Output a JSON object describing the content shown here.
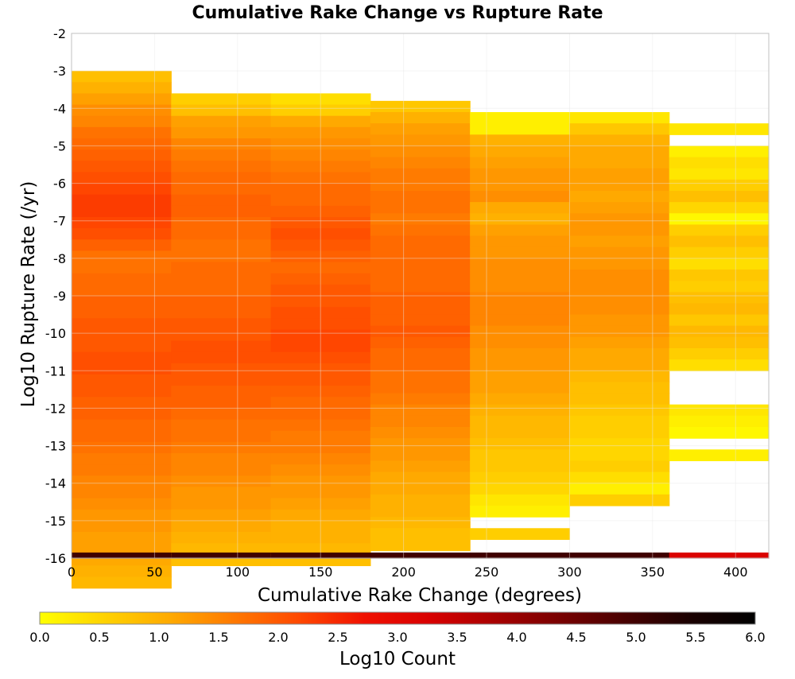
{
  "chart_data": {
    "type": "heatmap",
    "title": "Cumulative Rake Change vs Rupture Rate",
    "xlabel": "Cumulative Rake Change (degrees)",
    "ylabel": "Log10 Rupture Rate (/yr)",
    "xlim": [
      0,
      420
    ],
    "ylim": [
      -16,
      -2
    ],
    "x_ticks": [
      "0",
      "50",
      "100",
      "150",
      "200",
      "250",
      "300",
      "350",
      "400"
    ],
    "y_ticks": [
      "-2",
      "-3",
      "-4",
      "-5",
      "-6",
      "-7",
      "-8",
      "-9",
      "-10",
      "-11",
      "-12",
      "-13",
      "-14",
      "-15",
      "-16"
    ],
    "x_bin_edges": [
      0,
      60,
      120,
      180,
      240,
      300,
      360,
      420
    ],
    "y_bin_size": 0.3,
    "grid": true,
    "colorbar": {
      "label": "Log10 Count",
      "range": [
        0,
        6
      ],
      "ticks": [
        "0.0",
        "0.5",
        "1.0",
        "1.5",
        "2.0",
        "2.5",
        "3.0",
        "3.5",
        "4.0",
        "4.5",
        "5.0",
        "5.5",
        "6.0"
      ],
      "colors": [
        "#ffff00",
        "#ffd200",
        "#ffaa00",
        "#ff7800",
        "#ff4800",
        "#f01000",
        "#d80000",
        "#a80000",
        "#780000",
        "#480000",
        "#1a0000",
        "#000000"
      ]
    },
    "columns": [
      {
        "x_range": [
          0,
          60
        ],
        "y_top": -3.0,
        "cells_top_to_bottom": [
          0.8,
          1.0,
          1.2,
          1.4,
          1.5,
          1.7,
          1.8,
          1.9,
          2.0,
          2.1,
          2.2,
          2.3,
          2.3,
          2.2,
          2.1,
          1.9,
          1.7,
          1.7,
          1.8,
          1.8,
          1.9,
          1.9,
          2.0,
          2.0,
          2.0,
          2.1,
          2.1,
          2.0,
          2.0,
          1.9,
          1.9,
          1.8,
          1.8,
          1.7,
          1.6,
          1.6,
          1.5,
          1.5,
          1.4,
          1.3,
          1.3,
          1.2,
          1.2,
          1.1,
          1.0,
          0.9,
          5.0
        ]
      },
      {
        "x_range": [
          60,
          120
        ],
        "y_top": -3.6,
        "cells_top_to_bottom": [
          0.6,
          0.8,
          1.2,
          1.3,
          1.5,
          1.6,
          1.7,
          1.8,
          1.8,
          1.9,
          1.9,
          1.8,
          1.8,
          1.7,
          1.7,
          1.8,
          1.8,
          1.8,
          1.9,
          1.9,
          2.0,
          2.0,
          2.1,
          2.1,
          2.0,
          2.0,
          1.9,
          1.9,
          1.8,
          1.7,
          1.7,
          1.6,
          1.5,
          1.5,
          1.4,
          1.3,
          1.3,
          1.2,
          1.1,
          1.0,
          0.9,
          0.8,
          5.0
        ]
      },
      {
        "x_range": [
          120,
          180
        ],
        "y_top": -3.6,
        "cells_top_to_bottom": [
          0.4,
          0.6,
          1.1,
          1.3,
          1.4,
          1.5,
          1.6,
          1.7,
          1.8,
          1.8,
          1.9,
          2.0,
          2.1,
          2.0,
          1.9,
          1.8,
          1.9,
          2.0,
          2.0,
          2.1,
          2.1,
          2.2,
          2.2,
          2.1,
          2.0,
          2.0,
          1.9,
          1.8,
          1.8,
          1.7,
          1.6,
          1.6,
          1.5,
          1.4,
          1.3,
          1.3,
          1.2,
          1.1,
          1.0,
          1.0,
          0.9,
          0.8,
          5.0
        ]
      },
      {
        "x_range": [
          180,
          240
        ],
        "y_top": -3.8,
        "cells_top_to_bottom": [
          0.7,
          1.0,
          1.2,
          1.3,
          1.4,
          1.5,
          1.6,
          1.6,
          1.7,
          1.7,
          1.6,
          1.7,
          1.8,
          1.8,
          1.8,
          1.8,
          1.8,
          1.9,
          1.9,
          1.9,
          2.0,
          1.9,
          1.8,
          1.8,
          1.7,
          1.7,
          1.6,
          1.5,
          1.5,
          1.4,
          1.3,
          1.3,
          1.2,
          1.1,
          1.1,
          1.0,
          1.0,
          0.9,
          0.8,
          0.8,
          5.0
        ]
      },
      {
        "x_range": [
          240,
          300
        ],
        "y_top": -4.1,
        "cells_top_to_bottom": [
          0.2,
          0.2,
          1.0,
          1.1,
          1.2,
          1.3,
          1.3,
          1.4,
          1.1,
          1.0,
          1.2,
          1.3,
          1.3,
          1.4,
          1.4,
          1.4,
          1.5,
          1.5,
          1.5,
          1.4,
          1.4,
          1.3,
          1.3,
          1.2,
          1.2,
          1.1,
          1.0,
          0.9,
          0.9,
          0.8,
          0.7,
          0.7,
          0.6,
          0.5,
          0.3,
          0.2,
          null,
          0.6,
          5.0
        ]
      },
      {
        "x_range": [
          300,
          360
        ],
        "y_top": -4.1,
        "cells_top_to_bottom": [
          0.3,
          0.7,
          1.0,
          1.1,
          1.1,
          1.2,
          1.2,
          1.1,
          1.2,
          1.3,
          1.3,
          1.2,
          1.3,
          1.3,
          1.4,
          1.4,
          1.4,
          1.4,
          1.3,
          1.3,
          1.2,
          1.1,
          1.1,
          0.9,
          0.8,
          0.8,
          0.7,
          0.6,
          0.6,
          0.5,
          0.5,
          0.6,
          0.4,
          0.2,
          0.6,
          5.0
        ]
      },
      {
        "x_range": [
          360,
          420
        ],
        "y_top": -4.4,
        "cells_top_to_bottom": [
          0.3,
          null,
          0.2,
          0.4,
          0.3,
          0.6,
          0.8,
          0.5,
          0.1,
          0.6,
          0.8,
          0.6,
          0.4,
          0.7,
          0.6,
          0.8,
          0.9,
          0.7,
          0.9,
          0.8,
          0.6,
          0.4,
          null,
          null,
          null,
          0.3,
          0.2,
          0.1,
          null,
          0.2,
          null,
          null,
          null,
          null,
          null,
          null,
          null,
          null,
          null,
          null,
          3.2
        ]
      }
    ]
  }
}
